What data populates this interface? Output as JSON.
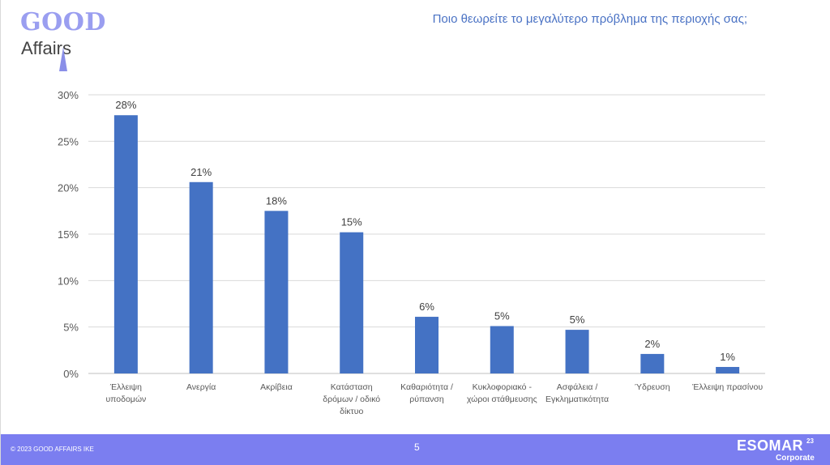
{
  "logo": {
    "top_text": "GOOD",
    "bottom_text": "Affairs"
  },
  "question": "Ποιο θεωρείτε το μεγαλύτερο πρόβλημα της περιοχής σας;",
  "footer": {
    "copyright": "© 2023 GOOD AFFAIRS IKE",
    "page_number": "5",
    "esomar_name": "ESOMAR",
    "esomar_year": "23",
    "esomar_sub": "Corporate"
  },
  "colors": {
    "bar": "#4472c4",
    "footer": "#7b7ef0",
    "question": "#4a72c4",
    "logo": "#9a9ef0"
  },
  "chart_data": {
    "type": "bar",
    "categories": [
      [
        "Έλλειψη",
        "υποδομών"
      ],
      [
        "Ανεργία"
      ],
      [
        "Ακρίβεια"
      ],
      [
        "Κατάσταση",
        "δρόμων / οδικό",
        "δίκτυο"
      ],
      [
        "Καθαριότητα /",
        "ρύπανση"
      ],
      [
        "Κυκλοφοριακό -",
        "χώροι στάθμευσης"
      ],
      [
        "Ασφάλεια /",
        "Εγκληματικότητα"
      ],
      [
        "Ύδρευση"
      ],
      [
        "Έλλειψη πρασίνου"
      ]
    ],
    "values": [
      27.8,
      20.6,
      17.5,
      15.2,
      6.1,
      5.1,
      4.7,
      2.1,
      0.7
    ],
    "data_labels": [
      "28%",
      "21%",
      "18%",
      "15%",
      "6%",
      "5%",
      "5%",
      "2%",
      "1%"
    ],
    "y_ticks": [
      "0%",
      "5%",
      "10%",
      "15%",
      "20%",
      "25%",
      "30%"
    ],
    "ylim": [
      0,
      30
    ],
    "title": "",
    "xlabel": "",
    "ylabel": "",
    "grid": true,
    "legend": "none"
  }
}
